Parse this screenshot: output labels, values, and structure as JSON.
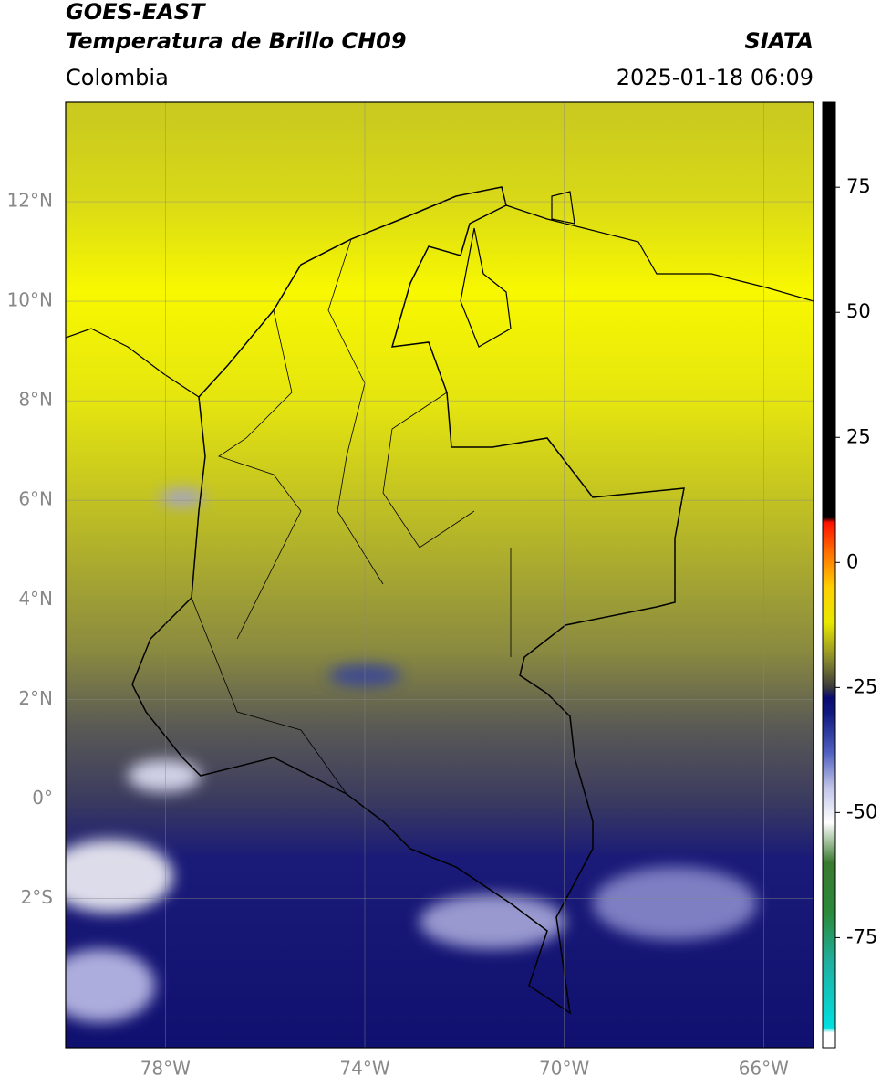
{
  "header": {
    "title": "GOES-EAST",
    "subtitle": "Temperatura de Brillo CH09",
    "region": "Colombia",
    "source": "SIATA",
    "datetime": "2025-01-18 06:09"
  },
  "map": {
    "xlim": [
      -80,
      -65
    ],
    "ylim": [
      -5,
      14
    ],
    "grid": true,
    "xticks": [
      {
        "value": -78,
        "label": "78°W"
      },
      {
        "value": -74,
        "label": "74°W"
      },
      {
        "value": -70,
        "label": "70°W"
      },
      {
        "value": -66,
        "label": "66°W"
      }
    ],
    "yticks": [
      {
        "value": -2,
        "label": "2°S"
      },
      {
        "value": 0,
        "label": "0°"
      },
      {
        "value": 2,
        "label": "2°N"
      },
      {
        "value": 4,
        "label": "4°N"
      },
      {
        "value": 6,
        "label": "6°N"
      },
      {
        "value": 8,
        "label": "8°N"
      },
      {
        "value": 10,
        "label": "10°N"
      },
      {
        "value": 12,
        "label": "12°N"
      }
    ]
  },
  "colorbar": {
    "lim": [
      -97,
      92
    ],
    "ticks": [
      -75,
      -50,
      -25,
      0,
      25,
      50,
      75
    ],
    "stops": [
      {
        "value": -97,
        "color": "#ffffff"
      },
      {
        "value": -94,
        "color": "#ffffff"
      },
      {
        "value": -93,
        "color": "#00e0e0"
      },
      {
        "value": -80,
        "color": "#20b0a0"
      },
      {
        "value": -70,
        "color": "#2a8a3a"
      },
      {
        "value": -60,
        "color": "#3a7a30"
      },
      {
        "value": -52,
        "color": "#ffffff"
      },
      {
        "value": -45,
        "color": "#c0c4e8"
      },
      {
        "value": -38,
        "color": "#5060c0"
      },
      {
        "value": -30,
        "color": "#101880"
      },
      {
        "value": -27,
        "color": "#0a0a70"
      },
      {
        "value": -25,
        "color": "#3a3a3a"
      },
      {
        "value": -20,
        "color": "#808030"
      },
      {
        "value": -12,
        "color": "#e8e800"
      },
      {
        "value": -5,
        "color": "#ffd000"
      },
      {
        "value": 2,
        "color": "#ff7000"
      },
      {
        "value": 8,
        "color": "#ff1000"
      },
      {
        "value": 9,
        "color": "#000000"
      },
      {
        "value": 92,
        "color": "#000000"
      }
    ]
  }
}
